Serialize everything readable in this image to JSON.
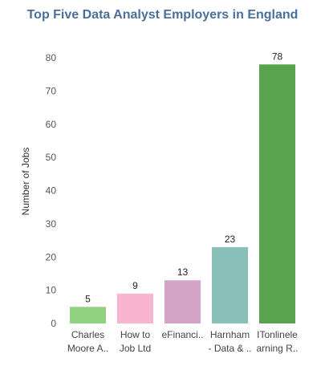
{
  "chart_data": {
    "type": "bar",
    "title": "Top Five Data Analyst Employers in England",
    "xlabel": "",
    "ylabel": "Number of Jobs",
    "ylim": [
      0,
      80
    ],
    "yticks": [
      0,
      10,
      20,
      30,
      40,
      50,
      60,
      70,
      80
    ],
    "grid": false,
    "categories": [
      [
        "Charles",
        "Moore A.."
      ],
      [
        "How to",
        "Job Ltd"
      ],
      [
        "eFinanci.."
      ],
      [
        "Harnham",
        "- Data & .."
      ],
      [
        "ITonlinele",
        "arning R.."
      ]
    ],
    "values": [
      5,
      9,
      13,
      23,
      78
    ],
    "data_labels": [
      "5",
      "9",
      "13",
      "23",
      "78"
    ],
    "colors": [
      "#8fd17e",
      "#f7b6cd",
      "#d3a4c7",
      "#88bfb8",
      "#5aa34e"
    ]
  }
}
